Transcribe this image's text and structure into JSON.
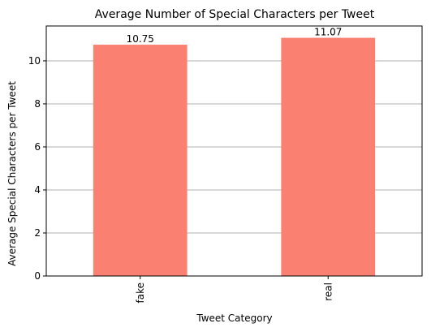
{
  "chart_data": {
    "type": "bar",
    "title": "Average Number of Special Characters per Tweet",
    "xlabel": "Tweet Category",
    "ylabel": "Average Special Characters per Tweet",
    "categories": [
      "fake",
      "real"
    ],
    "values": [
      10.75,
      11.07
    ],
    "value_labels": [
      "10.75",
      "11.07"
    ],
    "ylim": [
      0,
      11.62
    ],
    "yticks": [
      0,
      2,
      4,
      6,
      8,
      10
    ],
    "ytick_labels": [
      "0",
      "2",
      "4",
      "6",
      "8",
      "10"
    ],
    "grid": "y",
    "bar_color": "#fa8072",
    "grid_color": "#b0b0b0"
  }
}
